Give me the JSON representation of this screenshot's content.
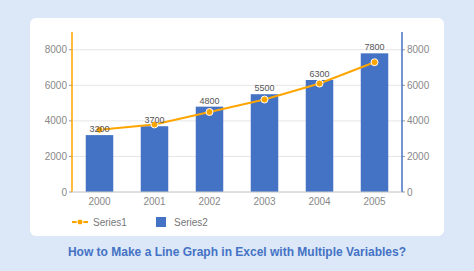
{
  "chart_data": {
    "type": "bar",
    "title": "How to Make a Line Graph in Excel with Multiple Variables?",
    "categories": [
      "2000",
      "2001",
      "2002",
      "2003",
      "2004",
      "2005"
    ],
    "series": [
      {
        "name": "Series1",
        "type": "line",
        "color": "#FFA500",
        "marker": "circle",
        "values": [
          3500,
          3800,
          4500,
          5200,
          6100,
          7300
        ]
      },
      {
        "name": "Series2",
        "type": "bar",
        "color": "#4472C4",
        "data_labels": true,
        "values": [
          3200,
          3700,
          4800,
          5500,
          6300,
          7800
        ]
      }
    ],
    "ylim": [
      0,
      9000
    ],
    "yticks": [
      0,
      2000,
      4000,
      6000,
      8000
    ],
    "y2lim": [
      0,
      9000
    ],
    "y2ticks": [
      0,
      2000,
      4000,
      6000,
      8000
    ],
    "grid": true,
    "legend": "bottom"
  }
}
